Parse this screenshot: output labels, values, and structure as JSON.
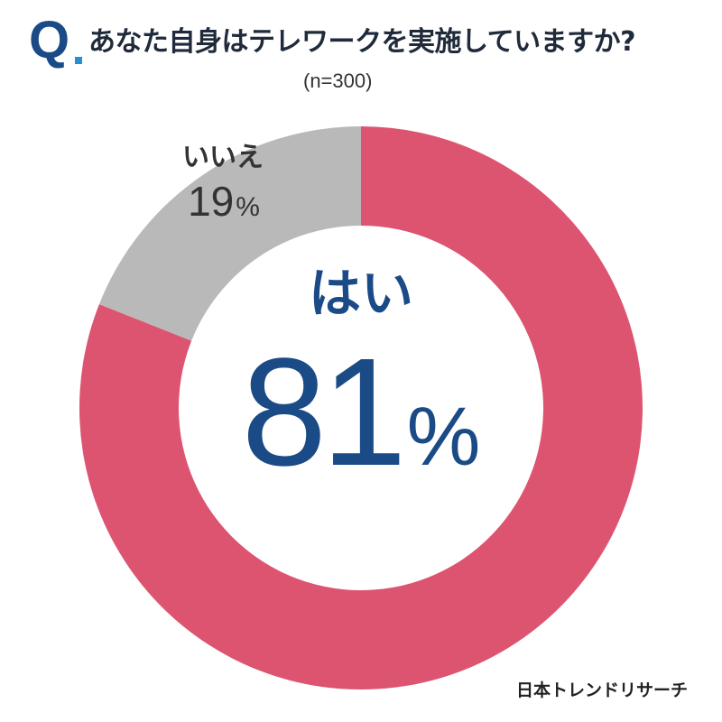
{
  "header": {
    "q_mark": "Q",
    "question": "あなた自身はテレワークを実施していますか?",
    "sample": "(n=300)"
  },
  "chart_data": {
    "type": "pie",
    "style": "donut",
    "title": "あなた自身はテレワークを実施していますか?",
    "subtitle": "(n=300)",
    "categories": [
      "はい",
      "いいえ"
    ],
    "values": [
      81,
      19
    ],
    "unit": "%",
    "colors": [
      "#dc5470",
      "#b9b9b9"
    ],
    "start": "top",
    "direction": "clockwise"
  },
  "labels": {
    "yes_label": "はい",
    "yes_value": "81",
    "yes_unit": "%",
    "no_label": "いいえ",
    "no_value": "19",
    "no_unit": "%"
  },
  "footer": {
    "source": "日本トレンドリサーチ"
  },
  "colors": {
    "accent_navy": "#1b4b86",
    "q_dot": "#2a8fd0",
    "yes_slice": "#dc5470",
    "no_slice": "#b9b9b9"
  }
}
